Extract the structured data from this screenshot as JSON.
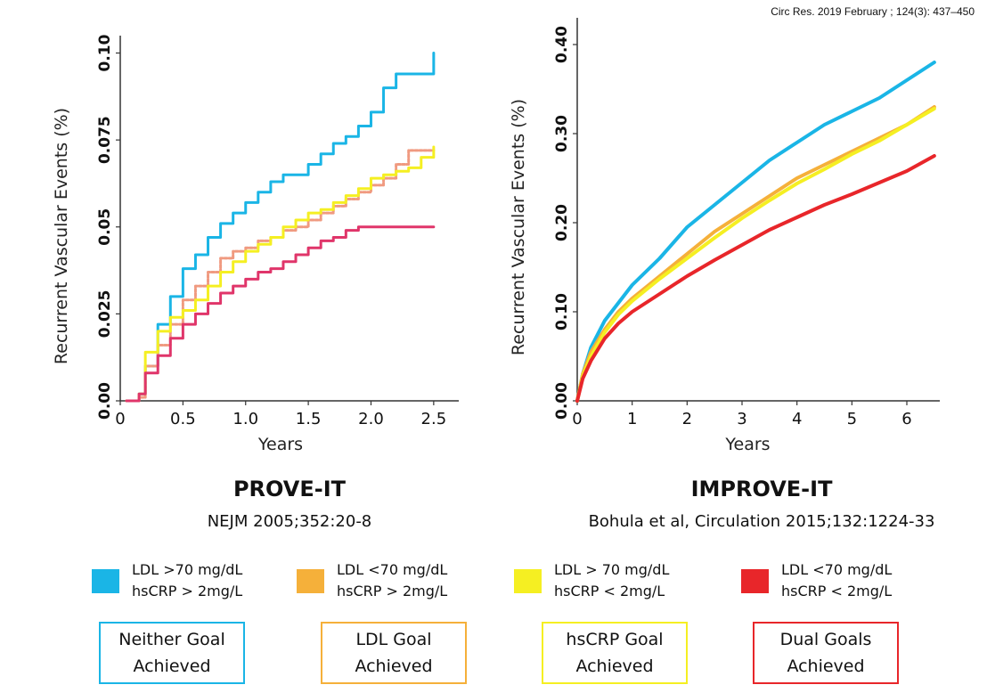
{
  "citation": "Circ Res. 2019 February ; 124(3): 437–450",
  "colors": {
    "neither": "#1ab5e6",
    "ldl": "#f5b03a",
    "hscrp": "#f5ef22",
    "dual": "#e8262a",
    "ldl_prove": "#f09a80",
    "dual_prove": "#e0356a"
  },
  "studies": [
    {
      "name": "PROVE-IT",
      "reference": "NEJM 2005;352:20-8"
    },
    {
      "name": "IMPROVE-IT",
      "reference": "Bohula et al, Circulation 2015;132:1224-33"
    }
  ],
  "legend": [
    {
      "line1": "LDL >70 mg/dL",
      "line2": "hsCRP > 2mg/L",
      "color": "#1ab5e6"
    },
    {
      "line1": "LDL <70 mg/dL",
      "line2": "hsCRP > 2mg/L",
      "color": "#f5b03a"
    },
    {
      "line1": "LDL > 70 mg/dL",
      "line2": "hsCRP < 2mg/L",
      "color": "#f5ef22"
    },
    {
      "line1": "LDL <70 mg/dL",
      "line2": "hsCRP < 2mg/L",
      "color": "#e8262a"
    }
  ],
  "goals": [
    {
      "line1": "Neither Goal",
      "line2": "Achieved",
      "color": "#1ab5e6"
    },
    {
      "line1": "LDL Goal",
      "line2": "Achieved",
      "color": "#f5b03a"
    },
    {
      "line1": "hsCRP Goal",
      "line2": "Achieved",
      "color": "#f5ef22"
    },
    {
      "line1": "Dual Goals",
      "line2": "Achieved",
      "color": "#e8262a"
    }
  ],
  "chart_data": [
    {
      "type": "line",
      "title": "PROVE-IT",
      "xlabel": "Years",
      "ylabel": "Recurrent Vascular Events (%)",
      "xlim": [
        0,
        2.7
      ],
      "ylim": [
        0,
        0.105
      ],
      "xticks": [
        "0",
        "0.5",
        "1.0",
        "1.5",
        "2.0",
        "2.5"
      ],
      "yticks": [
        "0.00",
        "0.025",
        "0.05",
        "0.075",
        "0.10"
      ],
      "series": [
        {
          "name": "Neither Goal Achieved",
          "color": "#1ab5e6",
          "x": [
            0.05,
            0.15,
            0.2,
            0.3,
            0.4,
            0.5,
            0.6,
            0.7,
            0.8,
            0.9,
            1.0,
            1.1,
            1.2,
            1.3,
            1.4,
            1.5,
            1.6,
            1.7,
            1.8,
            1.9,
            2.0,
            2.1,
            2.2,
            2.3,
            2.4,
            2.5
          ],
          "y": [
            0,
            0.002,
            0.01,
            0.022,
            0.03,
            0.038,
            0.042,
            0.047,
            0.051,
            0.054,
            0.057,
            0.06,
            0.063,
            0.065,
            0.065,
            0.068,
            0.071,
            0.074,
            0.076,
            0.079,
            0.083,
            0.09,
            0.094,
            0.094,
            0.094,
            0.1
          ]
        },
        {
          "name": "LDL Goal Achieved",
          "color": "#f09a80",
          "x": [
            0.05,
            0.15,
            0.2,
            0.3,
            0.4,
            0.5,
            0.6,
            0.7,
            0.8,
            0.9,
            1.0,
            1.1,
            1.2,
            1.3,
            1.4,
            1.5,
            1.6,
            1.7,
            1.8,
            1.9,
            2.0,
            2.1,
            2.2,
            2.3,
            2.4,
            2.5
          ],
          "y": [
            0,
            0.001,
            0.01,
            0.016,
            0.022,
            0.029,
            0.033,
            0.037,
            0.041,
            0.043,
            0.044,
            0.046,
            0.047,
            0.049,
            0.05,
            0.052,
            0.054,
            0.056,
            0.058,
            0.06,
            0.062,
            0.064,
            0.068,
            0.072,
            0.072,
            0.072
          ]
        },
        {
          "name": "hsCRP Goal Achieved",
          "color": "#f5ef22",
          "x": [
            0.05,
            0.15,
            0.2,
            0.3,
            0.4,
            0.5,
            0.6,
            0.7,
            0.8,
            0.9,
            1.0,
            1.1,
            1.2,
            1.3,
            1.4,
            1.5,
            1.6,
            1.7,
            1.8,
            1.9,
            2.0,
            2.1,
            2.2,
            2.3,
            2.4,
            2.5
          ],
          "y": [
            0,
            0.002,
            0.014,
            0.02,
            0.024,
            0.026,
            0.029,
            0.033,
            0.037,
            0.04,
            0.043,
            0.045,
            0.047,
            0.05,
            0.052,
            0.054,
            0.055,
            0.057,
            0.059,
            0.061,
            0.064,
            0.065,
            0.066,
            0.067,
            0.07,
            0.073
          ]
        },
        {
          "name": "Dual Goals Achieved",
          "color": "#e0356a",
          "x": [
            0.05,
            0.15,
            0.2,
            0.3,
            0.4,
            0.5,
            0.6,
            0.7,
            0.8,
            0.9,
            1.0,
            1.1,
            1.2,
            1.3,
            1.4,
            1.5,
            1.6,
            1.7,
            1.8,
            1.9,
            2.0,
            2.1,
            2.2,
            2.3,
            2.4,
            2.5
          ],
          "y": [
            0,
            0.002,
            0.008,
            0.013,
            0.018,
            0.022,
            0.025,
            0.028,
            0.031,
            0.033,
            0.035,
            0.037,
            0.038,
            0.04,
            0.042,
            0.044,
            0.046,
            0.047,
            0.049,
            0.05,
            0.05,
            0.05,
            0.05,
            0.05,
            0.05,
            0.05
          ]
        }
      ]
    },
    {
      "type": "line",
      "title": "IMPROVE-IT",
      "xlabel": "Years",
      "ylabel": "Recurrent Vascular Events (%)",
      "xlim": [
        0,
        6.6
      ],
      "ylim": [
        0,
        0.43
      ],
      "xticks": [
        "0",
        "1",
        "2",
        "3",
        "4",
        "5",
        "6"
      ],
      "yticks": [
        "0.00",
        "0.10",
        "0.20",
        "0.30",
        "0.40"
      ],
      "series": [
        {
          "name": "Neither Goal Achieved",
          "color": "#1ab5e6",
          "x": [
            0,
            0.1,
            0.25,
            0.5,
            0.75,
            1,
            1.5,
            2,
            2.5,
            3,
            3.5,
            4,
            4.5,
            5,
            5.5,
            6,
            6.5
          ],
          "y": [
            0,
            0.03,
            0.06,
            0.09,
            0.11,
            0.13,
            0.16,
            0.195,
            0.22,
            0.245,
            0.27,
            0.29,
            0.31,
            0.325,
            0.34,
            0.36,
            0.38
          ]
        },
        {
          "name": "LDL Goal Achieved",
          "color": "#f5b03a",
          "x": [
            0,
            0.1,
            0.25,
            0.5,
            0.75,
            1,
            1.5,
            2,
            2.5,
            3,
            3.5,
            4,
            4.5,
            5,
            5.5,
            6,
            6.5
          ],
          "y": [
            0,
            0.03,
            0.055,
            0.08,
            0.1,
            0.115,
            0.14,
            0.165,
            0.19,
            0.21,
            0.23,
            0.25,
            0.265,
            0.28,
            0.295,
            0.31,
            0.33
          ]
        },
        {
          "name": "hsCRP Goal Achieved",
          "color": "#f5ef22",
          "x": [
            0,
            0.1,
            0.25,
            0.5,
            0.75,
            1,
            1.5,
            2,
            2.5,
            3,
            3.5,
            4,
            4.5,
            5,
            5.5,
            6,
            6.5
          ],
          "y": [
            0,
            0.028,
            0.05,
            0.077,
            0.097,
            0.112,
            0.137,
            0.16,
            0.183,
            0.205,
            0.225,
            0.244,
            0.26,
            0.277,
            0.292,
            0.31,
            0.328
          ]
        },
        {
          "name": "Dual Goals Achieved",
          "color": "#e8262a",
          "x": [
            0,
            0.1,
            0.25,
            0.5,
            0.75,
            1,
            1.5,
            2,
            2.5,
            3,
            3.5,
            4,
            4.5,
            5,
            5.5,
            6,
            6.5
          ],
          "y": [
            0,
            0.025,
            0.045,
            0.07,
            0.087,
            0.1,
            0.12,
            0.14,
            0.158,
            0.175,
            0.192,
            0.206,
            0.22,
            0.232,
            0.245,
            0.258,
            0.275
          ]
        }
      ]
    }
  ]
}
